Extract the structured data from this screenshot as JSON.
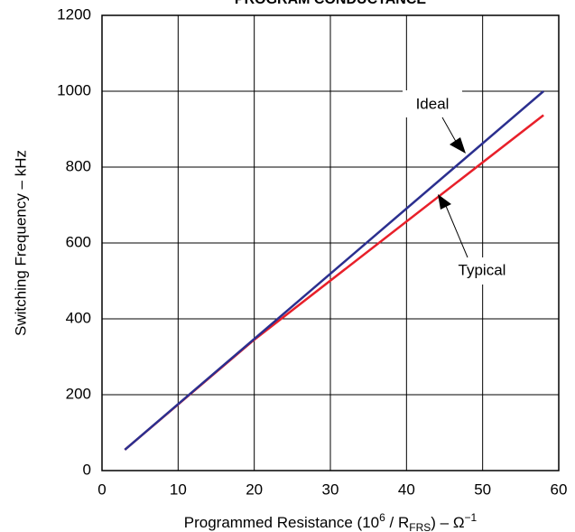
{
  "chart_data": {
    "type": "line",
    "title": "PROGRAM CONDUCTANCE",
    "xlabel": [
      "Programmed Resistance (10",
      "6",
      " / R",
      "FRS",
      ") – Ω",
      "−1"
    ],
    "ylabel": "Switching Frequency – kHz",
    "xlim": [
      0,
      60
    ],
    "xticks": [
      0,
      10,
      20,
      30,
      40,
      50,
      60
    ],
    "ylim": [
      0,
      1200
    ],
    "yticks": [
      0,
      200,
      400,
      600,
      800,
      1000,
      1200
    ],
    "grid": true,
    "series": [
      {
        "name": "Ideal",
        "color": "#2b2f8f",
        "x": [
          3,
          58
        ],
        "values": [
          55,
          1000
        ]
      },
      {
        "name": "Typical",
        "color": "#e8202a",
        "x": [
          3,
          20,
          58
        ],
        "values": [
          55,
          345,
          937
        ]
      }
    ]
  }
}
